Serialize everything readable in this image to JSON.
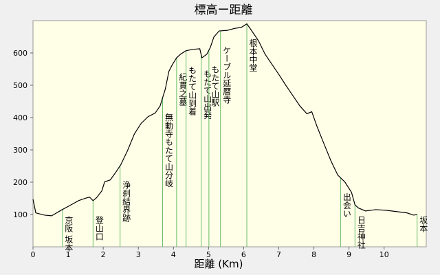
{
  "chart_data": {
    "type": "line",
    "title": "標高ー距離",
    "x_label": "距離 (Km)",
    "xlim": [
      0,
      11.2
    ],
    "ylim": [
      0,
      700
    ],
    "xticks": [
      0,
      1,
      2,
      3,
      4,
      5,
      6,
      7,
      8,
      9,
      10
    ],
    "yticks": [
      100,
      200,
      300,
      400,
      500,
      600
    ],
    "series": [
      {
        "color": "#000000",
        "x": [
          0,
          0.08,
          0.33,
          0.53,
          0.83,
          1.02,
          1.3,
          1.4,
          1.61,
          1.71,
          1.81,
          1.96,
          2.04,
          2.2,
          2.36,
          2.5,
          2.69,
          2.89,
          3.08,
          3.28,
          3.48,
          3.62,
          3.77,
          3.87,
          3.97,
          4.09,
          4.2,
          4.36,
          4.56,
          4.75,
          4.81,
          4.95,
          5.05,
          5.15,
          5.3,
          5.54,
          5.74,
          5.93,
          6.09,
          6.22,
          6.42,
          6.61,
          6.81,
          7.01,
          7.2,
          7.4,
          7.6,
          7.8,
          7.94,
          8.09,
          8.29,
          8.49,
          8.68,
          8.88,
          9.07,
          9.17,
          9.27,
          9.47,
          9.76,
          10.06,
          10.35,
          10.65,
          10.84,
          10.94
        ],
        "values": [
          147,
          105,
          98,
          96,
          115,
          126,
          143,
          147,
          154,
          143,
          152,
          173,
          201,
          207,
          231,
          254,
          297,
          350,
          382,
          403,
          414,
          436,
          489,
          543,
          564,
          585,
          596,
          607,
          611,
          613,
          585,
          596,
          617,
          649,
          668,
          670,
          676,
          679,
          690,
          670,
          638,
          596,
          564,
          532,
          500,
          468,
          436,
          412,
          418,
          372,
          318,
          265,
          222,
          201,
          169,
          130,
          120,
          111,
          115,
          113,
          109,
          105,
          98,
          100
        ]
      }
    ],
    "landmarks": [
      {
        "name": "京阪 坂本",
        "x": 0.84
      },
      {
        "name": "登山口",
        "x": 1.71
      },
      {
        "name": "浄刹結界跡",
        "x": 2.48
      },
      {
        "name": "無動寺もたて山分岐",
        "x": 3.69
      },
      {
        "name": "紀貫之墓",
        "x": 4.09
      },
      {
        "name": "もたて山到着",
        "x": 4.36
      },
      {
        "name": "もたて山出発",
        "x": 4.79
      },
      {
        "name": "もたて山駅",
        "x": 5.01
      },
      {
        "name": "ケーブル延暦寺",
        "x": 5.34
      },
      {
        "name": "根本中堂",
        "x": 6.09
      },
      {
        "name": "出会い",
        "x": 8.76
      },
      {
        "name": "日吉神社",
        "x": 9.17
      },
      {
        "name": "坂本",
        "x": 10.94
      }
    ]
  }
}
